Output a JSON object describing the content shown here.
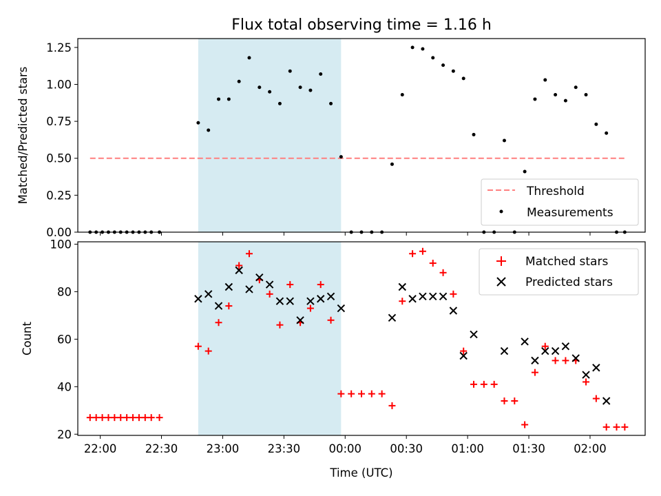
{
  "chart_data": [
    {
      "type": "scatter",
      "title": "Flux total observing time = 1.16 h",
      "ylabel": "Matched/Predicted stars",
      "xlabel": "",
      "ylim": [
        0,
        1.31
      ],
      "xlim": [
        "21:49",
        "02:27"
      ],
      "yticks": [
        "0.00",
        "0.25",
        "0.50",
        "0.75",
        "1.00",
        "1.25"
      ],
      "shaded_region": [
        "22:48",
        "23:58"
      ],
      "threshold": {
        "name": "Threshold",
        "value": 0.5,
        "x": [
          "21:55",
          "02:17"
        ],
        "color": "#ff7f7f"
      },
      "series": [
        {
          "name": "Measurements",
          "color": "#000000",
          "x": [
            "21:55",
            "21:58",
            "22:01",
            "22:04",
            "22:07",
            "22:10",
            "22:13",
            "22:16",
            "22:19",
            "22:22",
            "22:25",
            "22:29",
            "22:48",
            "22:53",
            "22:58",
            "23:03",
            "23:08",
            "23:13",
            "23:18",
            "23:23",
            "23:28",
            "23:33",
            "23:38",
            "23:43",
            "23:48",
            "23:53",
            "23:58",
            "00:03",
            "00:08",
            "00:13",
            "00:18",
            "00:23",
            "00:28",
            "00:33",
            "00:38",
            "00:43",
            "00:48",
            "00:53",
            "00:58",
            "01:03",
            "01:08",
            "01:13",
            "01:18",
            "01:23",
            "01:28",
            "01:33",
            "01:38",
            "01:43",
            "01:48",
            "01:53",
            "01:58",
            "02:03",
            "02:08",
            "02:13",
            "02:17"
          ],
          "y": [
            0,
            0,
            0,
            0,
            0,
            0,
            0,
            0,
            0,
            0,
            0,
            0,
            0.74,
            0.69,
            0.9,
            0.9,
            1.02,
            1.18,
            0.98,
            0.95,
            0.87,
            1.09,
            0.98,
            0.96,
            1.07,
            0.87,
            0.51,
            0,
            0,
            0,
            0,
            0.46,
            0.93,
            1.25,
            1.24,
            1.18,
            1.13,
            1.09,
            1.04,
            0.66,
            0,
            0,
            0.62,
            0,
            0.41,
            0.9,
            1.03,
            0.93,
            0.89,
            0.98,
            0.93,
            0.73,
            0.67,
            0,
            0
          ]
        }
      ],
      "legend": {
        "position": "bottom-right",
        "entries": [
          "Threshold",
          "Measurements"
        ]
      }
    },
    {
      "type": "scatter",
      "title": "",
      "ylabel": "Count",
      "xlabel": "Time (UTC)",
      "ylim": [
        19.5,
        101
      ],
      "xlim": [
        "21:49",
        "02:27"
      ],
      "yticks": [
        "20",
        "40",
        "60",
        "80",
        "100"
      ],
      "xticks": [
        "22:00",
        "22:30",
        "23:00",
        "23:30",
        "00:00",
        "00:30",
        "01:00",
        "01:30",
        "02:00"
      ],
      "shaded_region": [
        "22:48",
        "23:58"
      ],
      "series": [
        {
          "name": "Matched stars",
          "marker": "+",
          "color": "#ff0000",
          "x": [
            "21:55",
            "21:58",
            "22:01",
            "22:04",
            "22:07",
            "22:10",
            "22:13",
            "22:16",
            "22:19",
            "22:22",
            "22:25",
            "22:29",
            "22:48",
            "22:53",
            "22:58",
            "23:03",
            "23:08",
            "23:13",
            "23:18",
            "23:23",
            "23:28",
            "23:33",
            "23:38",
            "23:43",
            "23:48",
            "23:53",
            "23:58",
            "00:03",
            "00:08",
            "00:13",
            "00:18",
            "00:23",
            "00:28",
            "00:33",
            "00:38",
            "00:43",
            "00:48",
            "00:53",
            "00:58",
            "01:03",
            "01:08",
            "01:13",
            "01:18",
            "01:23",
            "01:28",
            "01:33",
            "01:38",
            "01:43",
            "01:48",
            "01:53",
            "01:58",
            "02:03",
            "02:08",
            "02:13",
            "02:17"
          ],
          "y": [
            27,
            27,
            27,
            27,
            27,
            27,
            27,
            27,
            27,
            27,
            27,
            27,
            57,
            55,
            67,
            74,
            91,
            96,
            85,
            79,
            66,
            83,
            67,
            73,
            83,
            68,
            37,
            37,
            37,
            37,
            37,
            32,
            76,
            96,
            97,
            92,
            88,
            79,
            55,
            41,
            41,
            41,
            34,
            34,
            24,
            46,
            57,
            51,
            51,
            51,
            42,
            35,
            23,
            23,
            23
          ]
        },
        {
          "name": "Predicted stars",
          "marker": "x",
          "color": "#000000",
          "x": [
            "22:48",
            "22:53",
            "22:58",
            "23:03",
            "23:08",
            "23:13",
            "23:18",
            "23:23",
            "23:28",
            "23:33",
            "23:38",
            "23:43",
            "23:48",
            "23:53",
            "23:58",
            "00:23",
            "00:28",
            "00:33",
            "00:38",
            "00:43",
            "00:48",
            "00:53",
            "00:58",
            "01:03",
            "01:18",
            "01:28",
            "01:33",
            "01:38",
            "01:43",
            "01:48",
            "01:53",
            "01:58",
            "02:03",
            "02:08"
          ],
          "y": [
            77,
            79,
            74,
            82,
            89,
            81,
            86,
            83,
            76,
            76,
            68,
            76,
            77,
            78,
            73,
            69,
            82,
            77,
            78,
            78,
            78,
            72,
            53,
            62,
            55,
            59,
            51,
            55,
            55,
            57,
            52,
            45,
            48,
            34
          ]
        }
      ],
      "legend": {
        "position": "top-right",
        "entries": [
          "Matched stars",
          "Predicted stars"
        ]
      }
    }
  ]
}
